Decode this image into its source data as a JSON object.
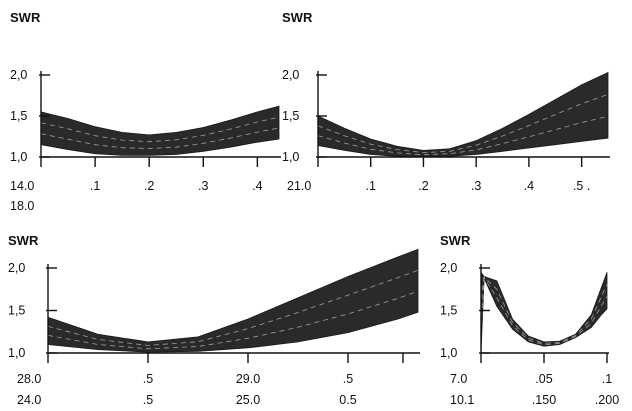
{
  "chart_data": [
    {
      "type": "area",
      "ylabel": "SWR",
      "ylim": [
        1.0,
        2.2
      ],
      "yticks": [
        {
          "value": 1.0,
          "label": "1,0"
        },
        {
          "value": 1.5,
          "label": "1,5"
        },
        {
          "value": 2.0,
          "label": "2,0"
        }
      ],
      "xlim": [
        0,
        4.4
      ],
      "xticks": [
        {
          "value": 0,
          "labels": [
            "14.0",
            "18.0"
          ]
        },
        {
          "value": 1,
          "labels": [
            ".1"
          ]
        },
        {
          "value": 2,
          "labels": [
            ".2"
          ]
        },
        {
          "value": 3,
          "labels": [
            ".3"
          ]
        },
        {
          "value": 4,
          "labels": [
            ".4"
          ]
        }
      ],
      "band": {
        "x": [
          0,
          0.5,
          1,
          1.5,
          2,
          2.5,
          3,
          3.5,
          4,
          4.4
        ],
        "lower": [
          1.15,
          1.09,
          1.04,
          1.02,
          1.02,
          1.03,
          1.07,
          1.12,
          1.18,
          1.22
        ],
        "upper": [
          1.55,
          1.47,
          1.37,
          1.3,
          1.27,
          1.3,
          1.36,
          1.45,
          1.55,
          1.62
        ]
      }
    },
    {
      "type": "area",
      "ylabel": "SWR",
      "ylim": [
        1.0,
        2.2
      ],
      "yticks": [
        {
          "value": 1.0,
          "label": "1,0"
        },
        {
          "value": 1.5,
          "label": "1,5"
        },
        {
          "value": 2.0,
          "label": "2,0"
        }
      ],
      "xlim": [
        0,
        5.5
      ],
      "xticks": [
        {
          "value": 0,
          "labels": [
            "21.0"
          ]
        },
        {
          "value": 1,
          "labels": [
            ".1"
          ]
        },
        {
          "value": 2,
          "labels": [
            ".2"
          ]
        },
        {
          "value": 3,
          "labels": [
            ".3"
          ]
        },
        {
          "value": 4,
          "labels": [
            ".4"
          ]
        },
        {
          "value": 5,
          "labels": [
            ".5 ."
          ]
        }
      ],
      "band": {
        "x": [
          0,
          0.5,
          1,
          1.5,
          2,
          2.5,
          3,
          3.5,
          4,
          4.5,
          5,
          5.5
        ],
        "lower": [
          1.14,
          1.08,
          1.03,
          1.01,
          1.0,
          1.01,
          1.03,
          1.07,
          1.11,
          1.15,
          1.19,
          1.23
        ],
        "upper": [
          1.5,
          1.35,
          1.22,
          1.13,
          1.08,
          1.1,
          1.2,
          1.35,
          1.52,
          1.7,
          1.88,
          2.03
        ]
      }
    },
    {
      "type": "area",
      "ylabel": "SWR",
      "ylim": [
        1.0,
        2.2
      ],
      "yticks": [
        {
          "value": 1.0,
          "label": "1,0"
        },
        {
          "value": 1.5,
          "label": "1,5"
        },
        {
          "value": 2.0,
          "label": "2,0"
        }
      ],
      "xlim": [
        0,
        3.7
      ],
      "xticks": [
        {
          "value": 0,
          "labels": [
            "28.0",
            "24.0"
          ]
        },
        {
          "value": 1,
          "labels": [
            ".5",
            ".5"
          ]
        },
        {
          "value": 2,
          "labels": [
            "29.0",
            "25.0"
          ]
        },
        {
          "value": 3,
          "labels": [
            ".5",
            "0.5"
          ]
        },
        {
          "value": 3.55,
          "labels": []
        }
      ],
      "band": {
        "x": [
          0,
          0.5,
          1,
          1.5,
          2,
          2.5,
          3,
          3.5,
          3.7
        ],
        "lower": [
          1.1,
          1.04,
          1.01,
          1.02,
          1.06,
          1.13,
          1.24,
          1.4,
          1.48
        ],
        "upper": [
          1.42,
          1.22,
          1.13,
          1.19,
          1.4,
          1.65,
          1.9,
          2.13,
          2.22
        ]
      }
    },
    {
      "type": "area",
      "ylabel": "SWR",
      "ylim": [
        1.0,
        2.0
      ],
      "yticks": [
        {
          "value": 1.0,
          "label": "1,0"
        },
        {
          "value": 1.5,
          "label": "1,5"
        },
        {
          "value": 2.0,
          "label": "2,0"
        }
      ],
      "xlim": [
        0,
        2.0
      ],
      "xticks": [
        {
          "value": 0,
          "labels": [
            "7.0",
            "10.1"
          ]
        },
        {
          "value": 1,
          "labels": [
            ".05",
            ".150"
          ]
        },
        {
          "value": 2,
          "labels": [
            ".1",
            ".200"
          ]
        }
      ],
      "band": {
        "x": [
          0,
          0.05,
          0.25,
          0.5,
          0.75,
          1.0,
          1.25,
          1.5,
          1.75,
          1.9,
          2.0
        ],
        "lower": [
          1.0,
          1.88,
          1.55,
          1.28,
          1.13,
          1.08,
          1.1,
          1.18,
          1.3,
          1.44,
          1.52
        ],
        "upper": [
          1.95,
          1.9,
          1.85,
          1.4,
          1.2,
          1.13,
          1.14,
          1.22,
          1.45,
          1.75,
          1.95
        ]
      }
    }
  ]
}
